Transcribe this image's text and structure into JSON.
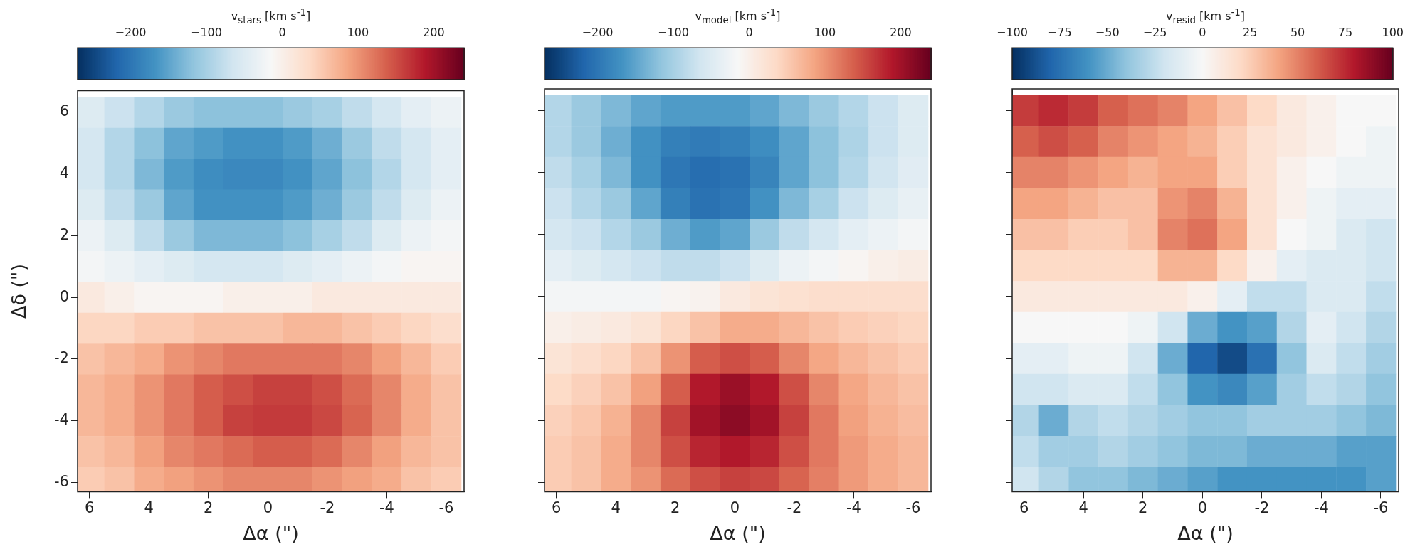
{
  "chart_data": [
    {
      "type": "heatmap",
      "xlabel": "Δα (\")",
      "ylabel": "Δδ (\")",
      "clabel": "v$_{stars}$ [km s$^{-1}$]",
      "x": [
        6,
        5,
        4,
        3,
        2,
        1,
        0,
        -1,
        -2,
        -3,
        -4,
        -5,
        -6
      ],
      "y": [
        6,
        5,
        4,
        3,
        2,
        1,
        0,
        -1,
        -2,
        -3,
        -4,
        -5,
        -6
      ],
      "xlim": [
        6.4,
        -6.6
      ],
      "ylim": [
        -6.3,
        6.7
      ],
      "xticks": [
        6,
        4,
        2,
        0,
        -2,
        -4,
        -6
      ],
      "yticks": [
        -6,
        -4,
        -2,
        0,
        2,
        4,
        6
      ],
      "clim": [
        -270,
        240
      ],
      "cticks": [
        -200,
        -100,
        0,
        100,
        200
      ],
      "cells": [
        [
          -50,
          -70,
          -90,
          -110,
          -120,
          -120,
          -120,
          -110,
          -100,
          -80,
          -60,
          -40,
          -30
        ],
        [
          -60,
          -90,
          -120,
          -150,
          -160,
          -170,
          -170,
          -160,
          -140,
          -110,
          -80,
          -60,
          -40
        ],
        [
          -60,
          -90,
          -130,
          -160,
          -175,
          -180,
          -180,
          -170,
          -150,
          -120,
          -90,
          -60,
          -40
        ],
        [
          -50,
          -80,
          -110,
          -150,
          -170,
          -170,
          -170,
          -160,
          -140,
          -110,
          -80,
          -50,
          -30
        ],
        [
          -30,
          -50,
          -80,
          -110,
          -130,
          -130,
          -130,
          -120,
          -100,
          -80,
          -50,
          -30,
          -20
        ],
        [
          -20,
          -30,
          -40,
          -50,
          -60,
          -60,
          -60,
          -50,
          -40,
          -30,
          -20,
          -10,
          -10
        ],
        [
          10,
          0,
          -10,
          -10,
          -10,
          0,
          0,
          0,
          10,
          10,
          10,
          10,
          10
        ],
        [
          40,
          40,
          50,
          50,
          60,
          60,
          60,
          70,
          70,
          60,
          50,
          40,
          30
        ],
        [
          60,
          70,
          80,
          100,
          110,
          120,
          120,
          120,
          120,
          110,
          90,
          70,
          50
        ],
        [
          70,
          80,
          100,
          120,
          140,
          150,
          160,
          160,
          150,
          130,
          110,
          80,
          60
        ],
        [
          70,
          80,
          100,
          120,
          140,
          160,
          165,
          165,
          155,
          135,
          110,
          80,
          60
        ],
        [
          60,
          70,
          90,
          110,
          120,
          130,
          140,
          140,
          130,
          110,
          90,
          70,
          60
        ],
        [
          50,
          60,
          80,
          90,
          100,
          110,
          110,
          110,
          100,
          90,
          80,
          60,
          50
        ]
      ]
    },
    {
      "type": "heatmap",
      "xlabel": "Δα (\")",
      "clabel": "v$_{model}$ [km s$^{-1}$]",
      "tick_labels": "x",
      "x": [
        6,
        5,
        4,
        3,
        2,
        1,
        0,
        -1,
        -2,
        -3,
        -4,
        -5,
        -6
      ],
      "y": [
        6,
        5,
        4,
        3,
        2,
        1,
        0,
        -1,
        -2,
        -3,
        -4,
        -5,
        -6
      ],
      "xlim": [
        6.4,
        -6.6
      ],
      "ylim": [
        -6.3,
        6.7
      ],
      "xticks": [
        6,
        4,
        2,
        0,
        -2,
        -4,
        -6
      ],
      "yticks": [
        -6,
        -4,
        -2,
        0,
        2,
        4,
        6
      ],
      "clim": [
        -270,
        240
      ],
      "cticks": [
        -200,
        -100,
        0,
        100,
        200
      ],
      "cells": [
        [
          -90,
          -110,
          -130,
          -150,
          -160,
          -160,
          -160,
          -150,
          -130,
          -110,
          -90,
          -70,
          -50
        ],
        [
          -90,
          -110,
          -140,
          -170,
          -190,
          -195,
          -190,
          -175,
          -150,
          -120,
          -95,
          -70,
          -50
        ],
        [
          -80,
          -100,
          -130,
          -170,
          -200,
          -210,
          -205,
          -185,
          -150,
          -120,
          -90,
          -65,
          -45
        ],
        [
          -70,
          -90,
          -110,
          -150,
          -190,
          -205,
          -200,
          -170,
          -130,
          -100,
          -70,
          -50,
          -35
        ],
        [
          -60,
          -70,
          -90,
          -110,
          -140,
          -160,
          -150,
          -110,
          -80,
          -60,
          -40,
          -30,
          -20
        ],
        [
          -40,
          -50,
          -60,
          -70,
          -80,
          -80,
          -70,
          -50,
          -30,
          -20,
          -10,
          0,
          5
        ],
        [
          -20,
          -20,
          -20,
          -20,
          -10,
          -5,
          10,
          20,
          25,
          30,
          30,
          30,
          30
        ],
        [
          0,
          5,
          10,
          20,
          40,
          60,
          80,
          80,
          70,
          60,
          50,
          45,
          40
        ],
        [
          20,
          30,
          40,
          60,
          100,
          140,
          150,
          140,
          110,
          85,
          70,
          60,
          50
        ],
        [
          35,
          45,
          60,
          90,
          140,
          190,
          205,
          190,
          150,
          110,
          85,
          70,
          60
        ],
        [
          45,
          55,
          75,
          110,
          160,
          200,
          215,
          200,
          160,
          120,
          90,
          75,
          65
        ],
        [
          50,
          60,
          80,
          110,
          150,
          180,
          190,
          180,
          150,
          120,
          95,
          80,
          70
        ],
        [
          50,
          60,
          80,
          100,
          130,
          150,
          160,
          155,
          135,
          115,
          95,
          80,
          70
        ]
      ]
    },
    {
      "type": "heatmap",
      "xlabel": "Δα (\")",
      "clabel": "v$_{resid}$ [km s$^{-1}$]",
      "tick_labels": "x",
      "x": [
        6,
        5,
        4,
        3,
        2,
        1,
        0,
        -1,
        -2,
        -3,
        -4,
        -5,
        -6
      ],
      "y": [
        6,
        5,
        4,
        3,
        2,
        1,
        0,
        -1,
        -2,
        -3,
        -4,
        -5,
        -6
      ],
      "xlim": [
        6.4,
        -6.6
      ],
      "ylim": [
        -6.3,
        6.7
      ],
      "xticks": [
        6,
        4,
        2,
        0,
        -2,
        -4,
        -6
      ],
      "yticks": [
        -6,
        -4,
        -2,
        0,
        2,
        4,
        6
      ],
      "clim": [
        -100,
        100
      ],
      "cticks": [
        -100,
        -75,
        -50,
        -25,
        0,
        25,
        50,
        75,
        100
      ],
      "cells": [
        [
          70,
          75,
          70,
          60,
          55,
          50,
          40,
          30,
          20,
          10,
          5,
          0,
          0
        ],
        [
          60,
          65,
          60,
          50,
          45,
          40,
          35,
          25,
          15,
          10,
          5,
          0,
          -5
        ],
        [
          50,
          50,
          45,
          40,
          35,
          40,
          40,
          25,
          15,
          5,
          0,
          -5,
          -5
        ],
        [
          40,
          40,
          35,
          30,
          30,
          45,
          50,
          35,
          15,
          5,
          -5,
          -10,
          -10
        ],
        [
          30,
          30,
          25,
          25,
          30,
          50,
          55,
          40,
          15,
          0,
          -5,
          -15,
          -20
        ],
        [
          20,
          20,
          20,
          20,
          20,
          35,
          35,
          20,
          5,
          -10,
          -15,
          -15,
          -20
        ],
        [
          10,
          10,
          10,
          10,
          10,
          10,
          5,
          -10,
          -25,
          -25,
          -15,
          -15,
          -25
        ],
        [
          0,
          0,
          0,
          0,
          -5,
          -20,
          -50,
          -60,
          -55,
          -30,
          -10,
          -20,
          -30
        ],
        [
          -10,
          -10,
          -5,
          -5,
          -20,
          -50,
          -80,
          -90,
          -75,
          -40,
          -15,
          -25,
          -35
        ],
        [
          -20,
          -20,
          -15,
          -15,
          -25,
          -40,
          -60,
          -65,
          -55,
          -35,
          -25,
          -30,
          -40
        ],
        [
          -30,
          -50,
          -30,
          -25,
          -30,
          -35,
          -40,
          -40,
          -35,
          -35,
          -35,
          -40,
          -45
        ],
        [
          -25,
          -35,
          -35,
          -30,
          -35,
          -40,
          -45,
          -45,
          -50,
          -50,
          -50,
          -55,
          -55
        ],
        [
          -20,
          -30,
          -40,
          -40,
          -45,
          -50,
          -55,
          -60,
          -60,
          -60,
          -60,
          -60,
          -55
        ]
      ]
    }
  ]
}
